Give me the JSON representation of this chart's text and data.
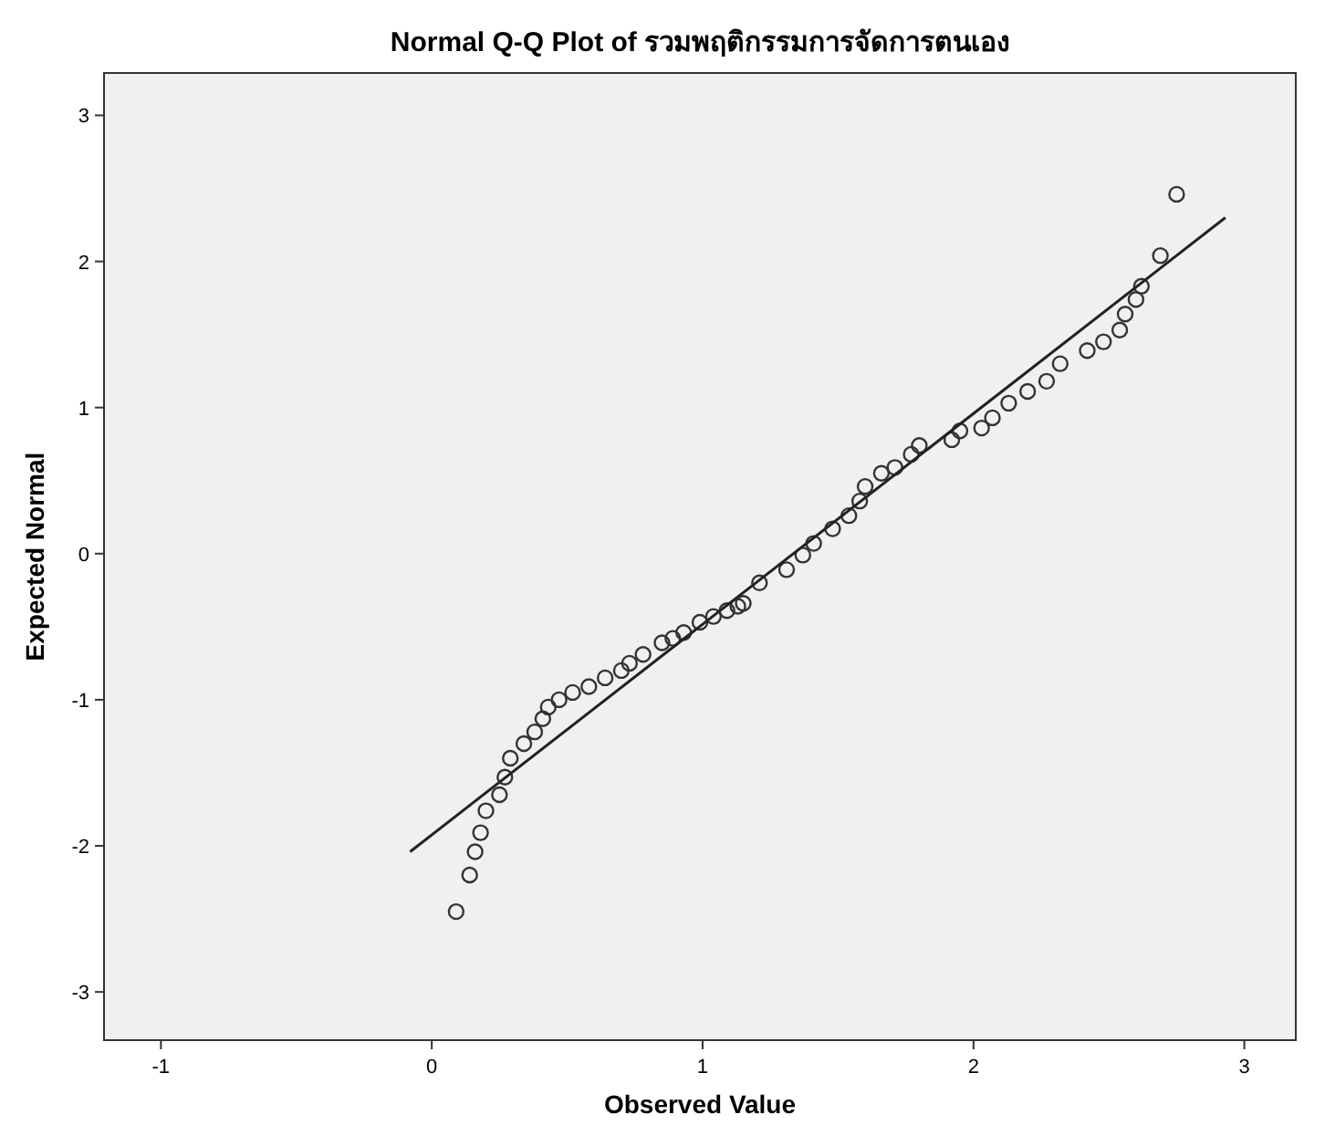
{
  "chart_data": {
    "type": "scatter",
    "title": "Normal Q-Q Plot of รวมพฤติกรรมการจัดการตนเอง",
    "xlabel": "Observed Value",
    "ylabel": "Expected Normal",
    "xlim": [
      -1.21,
      3.19
    ],
    "ylim": [
      -3.33,
      3.29
    ],
    "xticks": [
      -1,
      0,
      1,
      2,
      3
    ],
    "yticks": [
      -3,
      -2,
      -1,
      0,
      1,
      2,
      3
    ],
    "grid": false,
    "series": [
      {
        "marker": "circle",
        "color": "#333333",
        "x": [
          0.09,
          0.14,
          0.16,
          0.18,
          0.2,
          0.25,
          0.27,
          0.29,
          0.34,
          0.38,
          0.41,
          0.43,
          0.47,
          0.52,
          0.58,
          0.64,
          0.7,
          0.73,
          0.78,
          0.85,
          0.89,
          0.93,
          0.99,
          1.04,
          1.09,
          1.13,
          1.15,
          1.21,
          1.31,
          1.37,
          1.41,
          1.48,
          1.54,
          1.58,
          1.6,
          1.66,
          1.71,
          1.77,
          1.8,
          1.92,
          1.95,
          2.03,
          2.07,
          2.13,
          2.2,
          2.27,
          2.32,
          2.42,
          2.48,
          2.54,
          2.56,
          2.6,
          2.62,
          2.69,
          2.75
        ],
        "values": [
          -2.45,
          -2.2,
          -2.04,
          -1.91,
          -1.76,
          -1.65,
          -1.53,
          -1.4,
          -1.3,
          -1.22,
          -1.13,
          -1.05,
          -1.0,
          -0.95,
          -0.91,
          -0.85,
          -0.8,
          -0.75,
          -0.69,
          -0.61,
          -0.58,
          -0.54,
          -0.47,
          -0.43,
          -0.39,
          -0.36,
          -0.34,
          -0.2,
          -0.11,
          -0.01,
          0.07,
          0.17,
          0.26,
          0.36,
          0.46,
          0.55,
          0.59,
          0.68,
          0.74,
          0.78,
          0.84,
          0.86,
          0.93,
          1.03,
          1.11,
          1.18,
          1.3,
          1.39,
          1.45,
          1.53,
          1.64,
          1.74,
          1.83,
          2.04,
          2.46
        ]
      },
      {
        "type": "line",
        "color": "#222222",
        "line_style": "solid",
        "x": [
          -0.08,
          2.93
        ],
        "values": [
          -2.04,
          2.3
        ]
      }
    ]
  }
}
